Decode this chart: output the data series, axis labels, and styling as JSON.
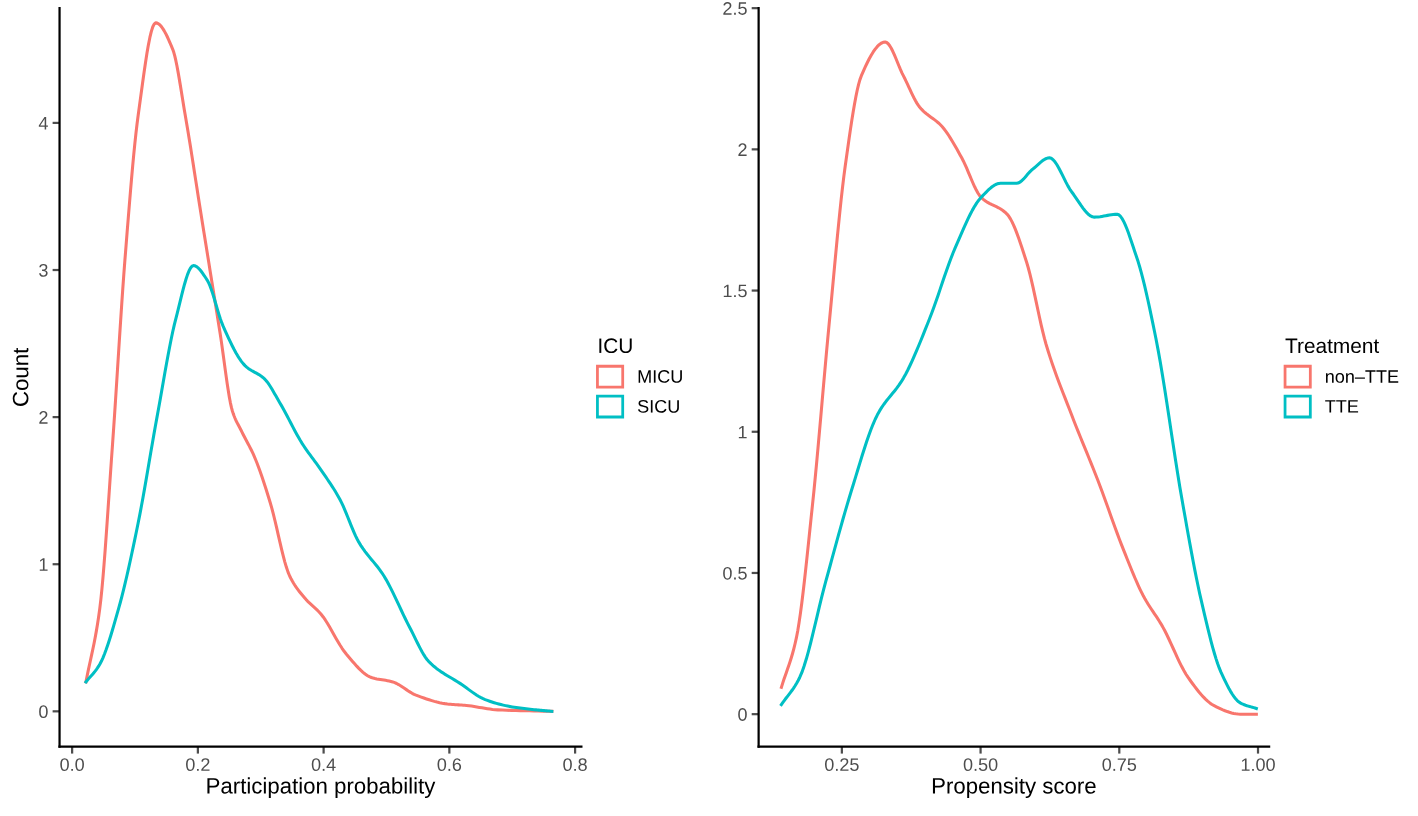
{
  "chart_data": [
    {
      "type": "line",
      "xlabel": "Participation probability",
      "ylabel": "Count",
      "legend_title": "ICU",
      "legend": "right",
      "grid": false,
      "xlim": [
        -0.02,
        0.81
      ],
      "ylim": [
        -0.24,
        4.78
      ],
      "xticks": [
        {
          "value": 0,
          "label": "0.0"
        },
        {
          "value": 0.2,
          "label": "0.2"
        },
        {
          "value": 0.4,
          "label": "0.4"
        },
        {
          "value": 0.6,
          "label": "0.6"
        },
        {
          "value": 0.8,
          "label": "0.8"
        }
      ],
      "yticks": [
        0,
        1,
        2,
        3,
        4
      ],
      "series": [
        {
          "name": "MICU",
          "color": "#f8766d",
          "x": [
            0.022,
            0.044,
            0.064,
            0.084,
            0.105,
            0.133,
            0.16,
            0.18,
            0.205,
            0.235,
            0.255,
            0.27,
            0.29,
            0.315,
            0.346,
            0.37,
            0.396,
            0.436,
            0.476,
            0.51,
            0.547,
            0.597,
            0.627,
            0.677,
            0.763
          ],
          "values": [
            0.2,
            0.7,
            1.8,
            3.07,
            4.05,
            4.68,
            4.5,
            4.05,
            3.38,
            2.58,
            2.04,
            1.9,
            1.73,
            1.42,
            0.92,
            0.77,
            0.66,
            0.39,
            0.23,
            0.2,
            0.11,
            0.05,
            0.04,
            0.01,
            0
          ]
        },
        {
          "name": "SICU",
          "color": "#00bfc4",
          "x": [
            0.022,
            0.044,
            0.074,
            0.105,
            0.135,
            0.165,
            0.193,
            0.215,
            0.24,
            0.275,
            0.306,
            0.33,
            0.366,
            0.396,
            0.426,
            0.456,
            0.496,
            0.537,
            0.567,
            0.617,
            0.657,
            0.7,
            0.738,
            0.763
          ],
          "values": [
            0.2,
            0.32,
            0.7,
            1.28,
            2.0,
            2.67,
            3.03,
            2.93,
            2.62,
            2.35,
            2.26,
            2.1,
            1.82,
            1.64,
            1.44,
            1.15,
            0.92,
            0.57,
            0.34,
            0.19,
            0.08,
            0.03,
            0.01,
            0
          ]
        }
      ]
    },
    {
      "type": "line",
      "xlabel": "Propensity score",
      "legend_title": "Treatment",
      "legend": "right",
      "grid": false,
      "xlim": [
        0.1,
        1.02
      ],
      "ylim": [
        -0.115,
        2.5
      ],
      "xticks": [
        0.25,
        {
          "value": 0.5,
          "label": "0.50"
        },
        0.75,
        {
          "value": 1.0,
          "label": "1.00"
        }
      ],
      "yticks": [
        0,
        0.5,
        1,
        1.5,
        2,
        2.5
      ],
      "series": [
        {
          "name": "non‒TTE",
          "color": "#f8766d",
          "x": [
            0.141,
            0.168,
            0.197,
            0.227,
            0.256,
            0.285,
            0.328,
            0.361,
            0.39,
            0.431,
            0.466,
            0.501,
            0.548,
            0.583,
            0.618,
            0.664,
            0.711,
            0.758,
            0.793,
            0.828,
            0.874,
            0.921,
            0.968,
            0.997
          ],
          "values": [
            0.095,
            0.27,
            0.74,
            1.38,
            1.94,
            2.26,
            2.38,
            2.26,
            2.15,
            2.08,
            1.97,
            1.83,
            1.77,
            1.6,
            1.31,
            1.06,
            0.83,
            0.58,
            0.42,
            0.31,
            0.13,
            0.03,
            0,
            0
          ]
        },
        {
          "name": "TTE",
          "color": "#00bfc4",
          "x": [
            0.141,
            0.174,
            0.221,
            0.267,
            0.314,
            0.361,
            0.408,
            0.454,
            0.501,
            0.536,
            0.565,
            0.594,
            0.624,
            0.664,
            0.705,
            0.746,
            0.781,
            0.816,
            0.863,
            0.898,
            0.933,
            0.968,
            0.997
          ],
          "values": [
            0.034,
            0.13,
            0.47,
            0.79,
            1.06,
            1.19,
            1.4,
            1.65,
            1.83,
            1.88,
            1.88,
            1.93,
            1.97,
            1.85,
            1.76,
            1.77,
            1.62,
            1.33,
            0.76,
            0.4,
            0.15,
            0.04,
            0.02
          ]
        }
      ]
    }
  ]
}
